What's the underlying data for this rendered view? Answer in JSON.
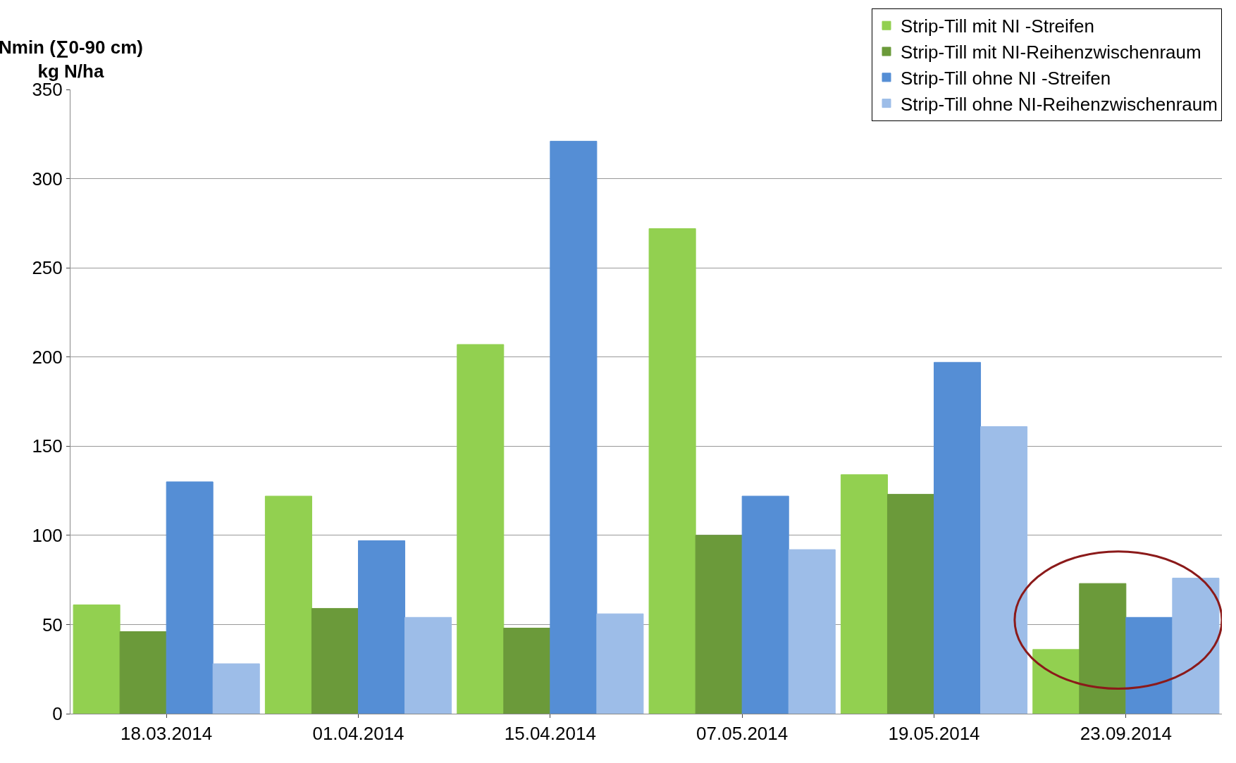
{
  "chart_data": {
    "type": "bar",
    "ylabel": "Nmin (∑0-90 cm)\nkg N/ha",
    "categories": [
      "18.03.2014",
      "01.04.2014",
      "15.04.2014",
      "07.05.2014",
      "19.05.2014",
      "23.09.2014"
    ],
    "series": [
      {
        "name": "Strip-Till mit NI -Streifen",
        "color": "#92d050",
        "values": [
          61,
          122,
          207,
          272,
          134,
          36
        ]
      },
      {
        "name": "Strip-Till mit NI-Reihenzwischenraum",
        "color": "#6b9a3a",
        "values": [
          46,
          59,
          48,
          100,
          123,
          73
        ]
      },
      {
        "name": "Strip-Till ohne NI -Streifen",
        "color": "#558ed5",
        "values": [
          130,
          97,
          321,
          122,
          197,
          54
        ]
      },
      {
        "name": "Strip-Till ohne NI-Reihenzwischenraum",
        "color": "#9dbde8",
        "values": [
          28,
          54,
          56,
          92,
          161,
          76
        ]
      }
    ],
    "ylim": [
      0,
      350
    ],
    "yticks": [
      0,
      50,
      100,
      150,
      200,
      250,
      300,
      350
    ],
    "grid": "y",
    "legend": "top right"
  }
}
